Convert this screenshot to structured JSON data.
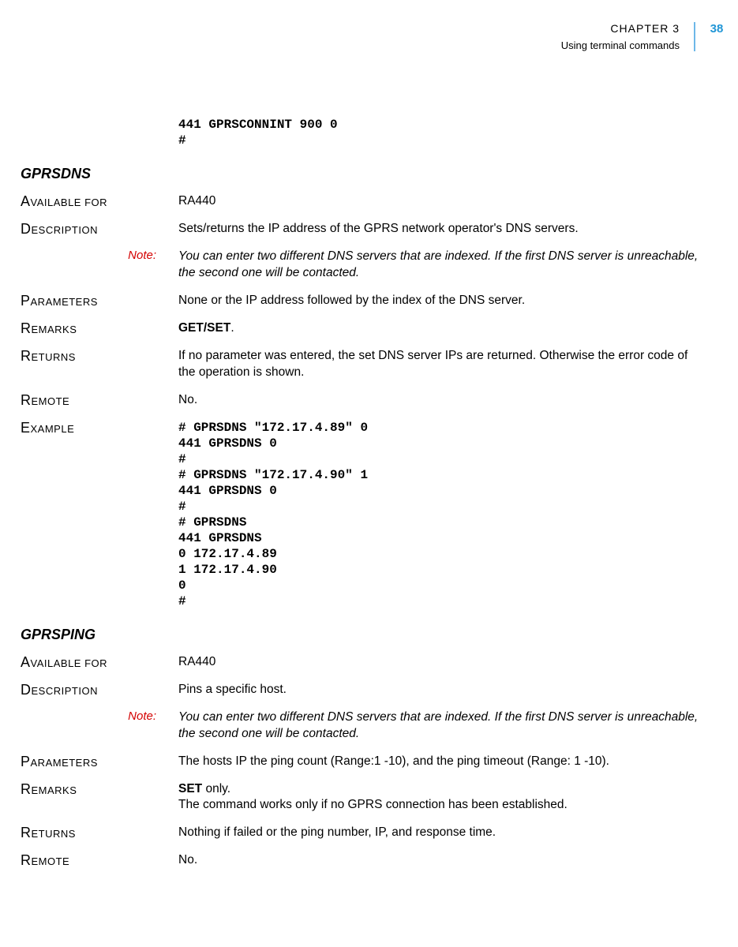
{
  "header": {
    "chapter": "CHAPTER 3",
    "subtitle": "Using terminal commands",
    "page_number": "38"
  },
  "colors": {
    "accent": "#2196d6",
    "rule": "#6db8e8",
    "note": "#d40000",
    "text": "#000000",
    "background": "#ffffff"
  },
  "intro_code": "441 GPRSCONNINT 900 0\n#",
  "sections": [
    {
      "title": "GPRSDNS",
      "rows": [
        {
          "label": "Available for",
          "value": "RA440"
        },
        {
          "label": "Description",
          "value": "Sets/returns the IP address of the GPRS network operator's DNS servers."
        },
        {
          "type": "note",
          "label": "Note:",
          "value": "You can enter two different DNS servers that are indexed. If the first DNS server is unreachable, the second one will be contacted."
        },
        {
          "label": "Parameters",
          "value": "None or the IP address followed by the index of the DNS server."
        },
        {
          "label": "Remarks",
          "bold": "GET/SET",
          "after": "."
        },
        {
          "label": "Returns",
          "value": "If no parameter was entered, the set DNS server IPs are returned. Otherwise the error code of the operation is shown."
        },
        {
          "label": "Remote",
          "value": "No."
        },
        {
          "label": "Example",
          "code": "# GPRSDNS \"172.17.4.89\" 0\n441 GPRSDNS 0\n#\n# GPRSDNS \"172.17.4.90\" 1\n441 GPRSDNS 0\n#\n# GPRSDNS\n441 GPRSDNS\n0 172.17.4.89\n1 172.17.4.90\n0\n#"
        }
      ]
    },
    {
      "title": "GPRSPING",
      "rows": [
        {
          "label": "Available for",
          "value": "RA440"
        },
        {
          "label": "Description",
          "value": "Pins a specific host."
        },
        {
          "type": "note",
          "label": "Note:",
          "value": "You can enter two different DNS servers that are indexed. If the first DNS server is unreachable, the second one will be contacted."
        },
        {
          "label": "Parameters",
          "value": "The hosts IP the ping count (Range:1 -10), and the ping timeout (Range: 1 -10)."
        },
        {
          "label": "Remarks",
          "bold": "SET",
          "after": " only.\nThe command works only if no GPRS connection has been established."
        },
        {
          "label": "Returns",
          "value": "Nothing if failed or the ping number, IP, and response time."
        },
        {
          "label": "Remote",
          "value": "No."
        }
      ]
    }
  ]
}
